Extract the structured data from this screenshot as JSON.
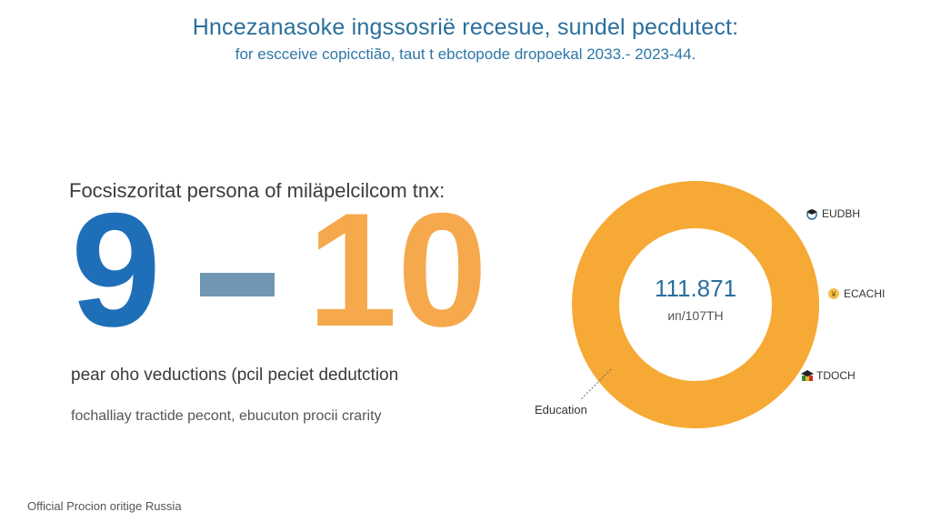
{
  "header": {
    "title": "Hncezanasoke ingssosrië recesue, sundel pecdutect:",
    "subtitle": "for escceive copicctião, taut t ebctopode dropoekal 2033.- 2023-44."
  },
  "stat": {
    "label": "Focsiszoritat persona of miläpelcilcom tnx:",
    "from": "9",
    "to": "10",
    "note": "pear oho veductions (pcil peciet dedutction",
    "note2": "fochalliay tractide pecont, ebucuton procii crarity"
  },
  "ring": {
    "value": "111.871",
    "unit": "ип/107TH",
    "color": "#f6a935",
    "legend": [
      {
        "label": "EUDBH",
        "icon": "graduation-cap-icon"
      },
      {
        "label": "ECACHI",
        "icon": "coin-icon"
      },
      {
        "label": "TDOCH",
        "icon": "graduation-cap-icon"
      }
    ],
    "callout": "Education"
  },
  "footer": "Official Procion oritige Russia",
  "colors": {
    "blue": "#1f6fb8",
    "orange": "#f5a94c",
    "dash": "#6f97b3",
    "title": "#2a6f9c"
  }
}
